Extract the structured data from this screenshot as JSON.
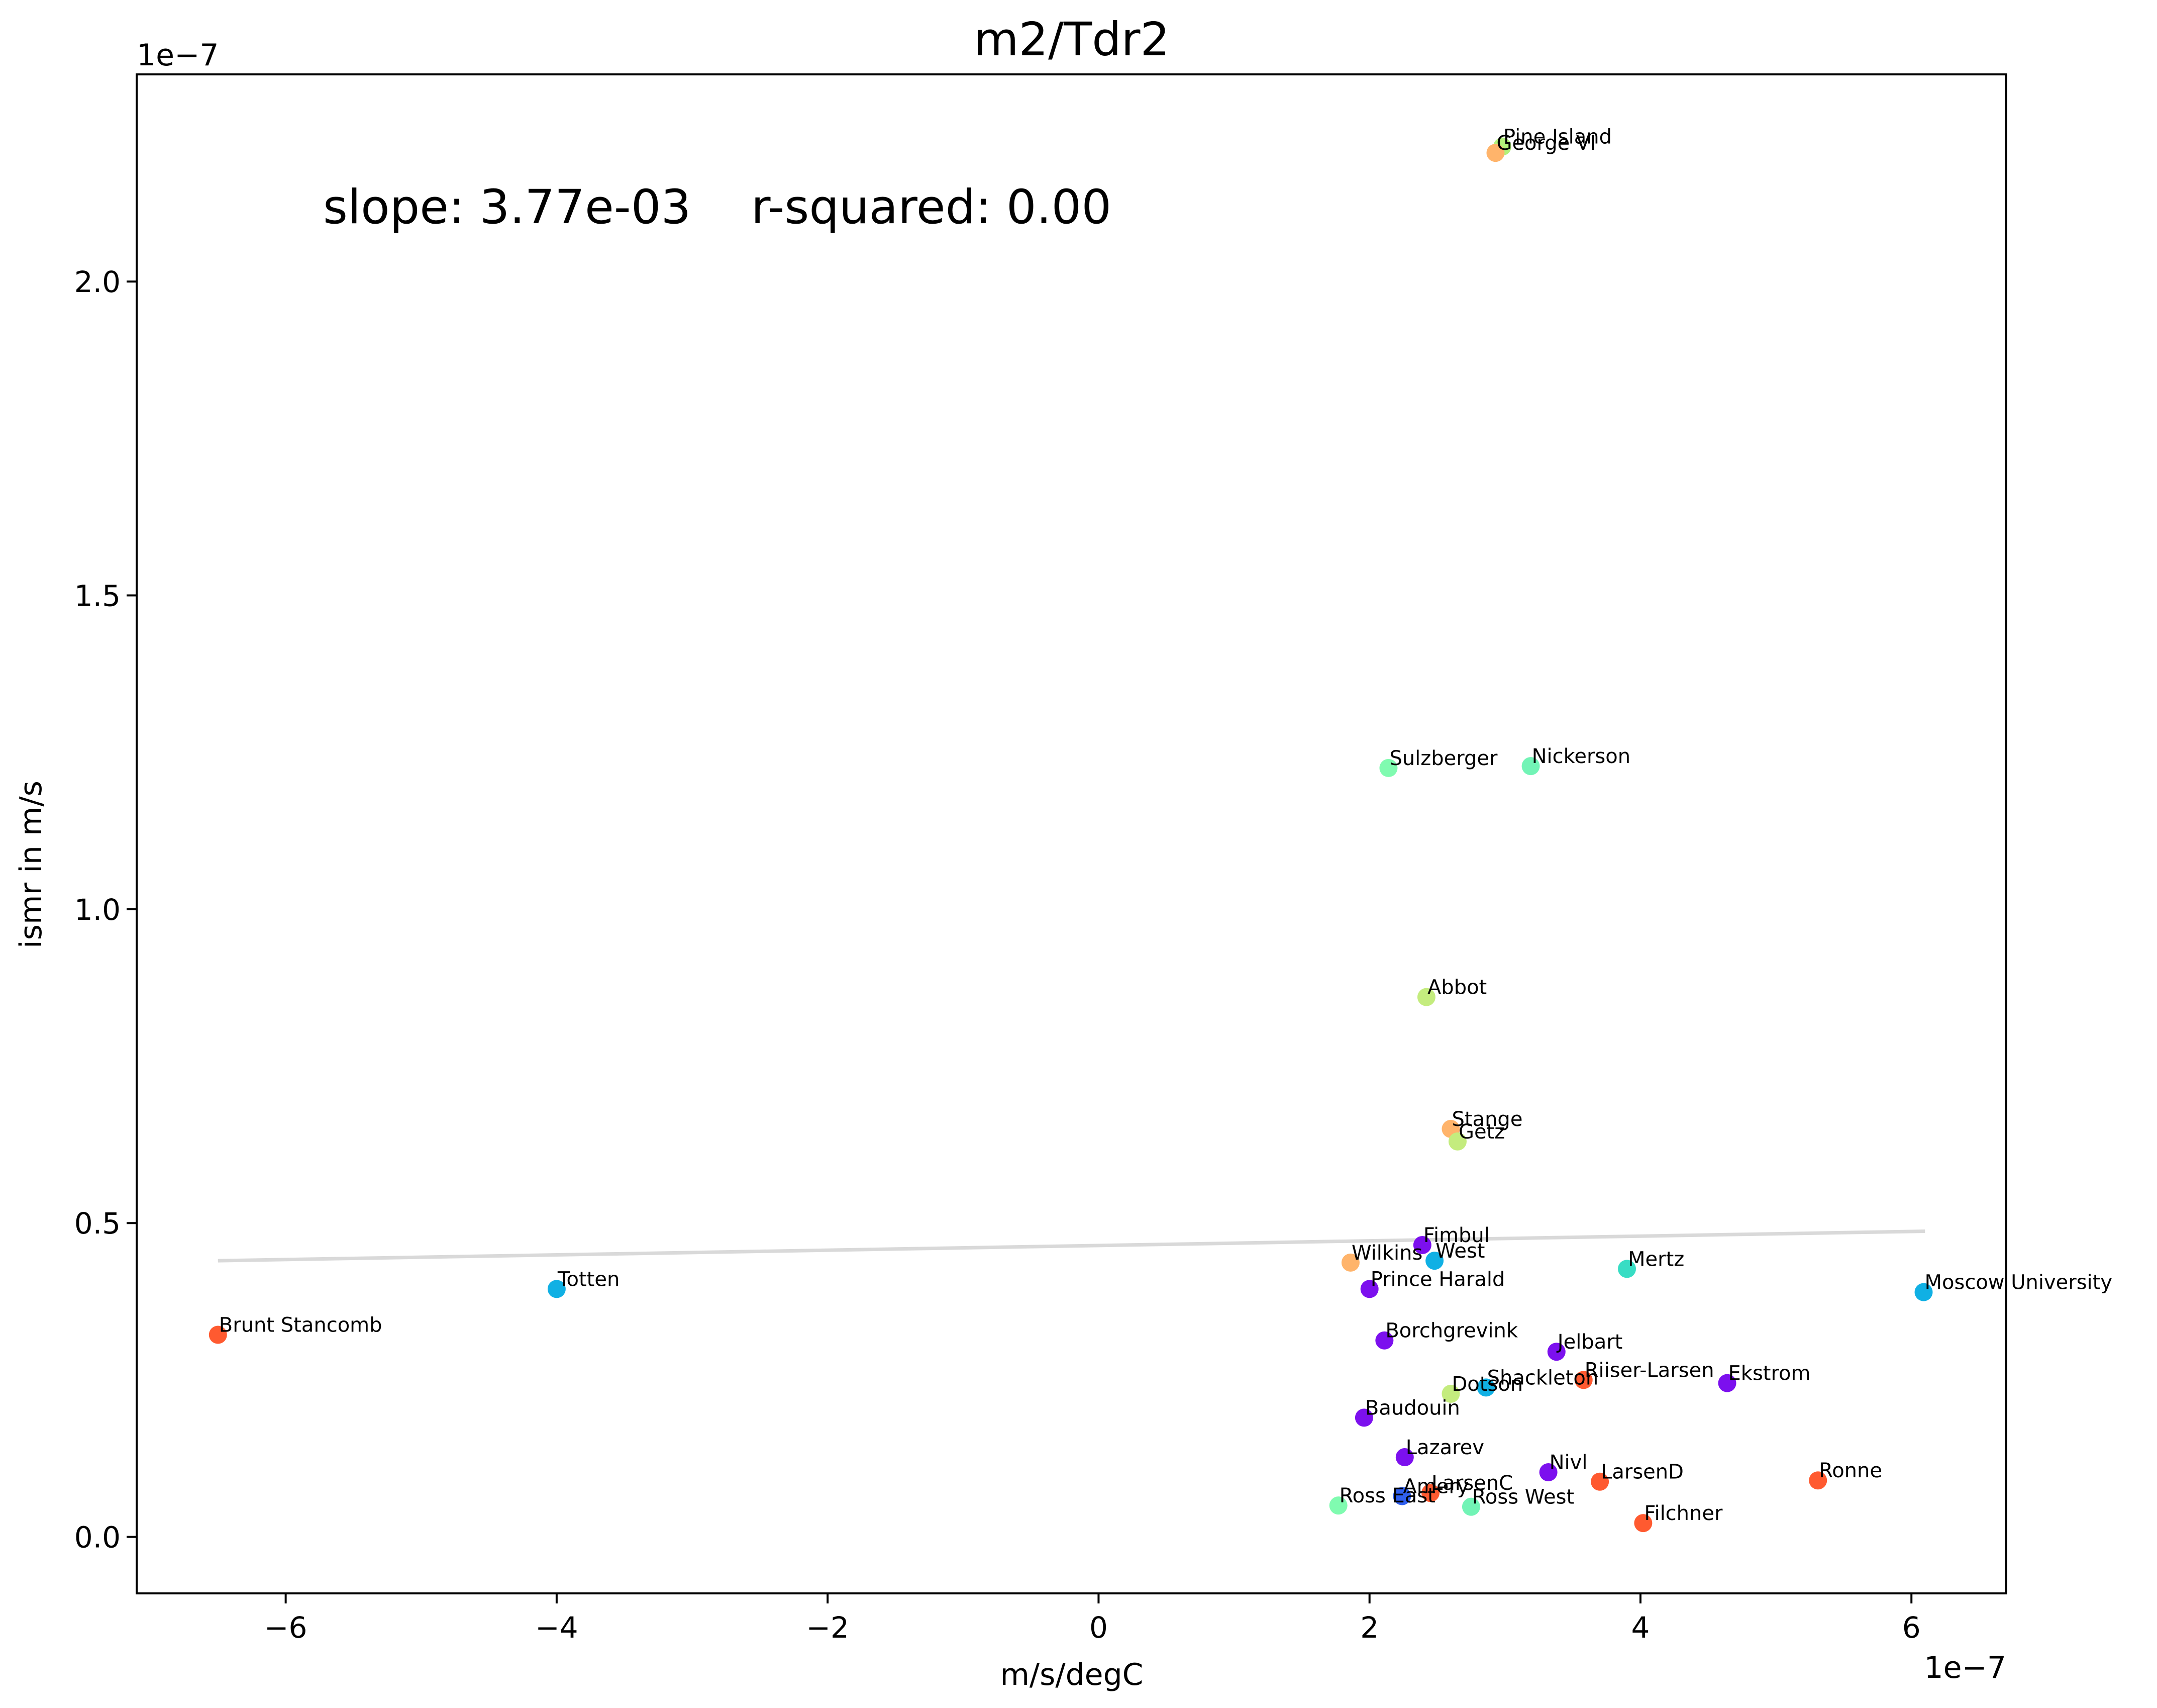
{
  "chart_data": {
    "type": "scatter",
    "title": "m2/Tdr2",
    "xlabel": "m/s/degC",
    "ylabel": "ismr in m/s",
    "x_offset_label": "1e−7",
    "y_offset_label": "1e−7",
    "annotation": "slope: 3.77e-03    r-squared: 0.00",
    "xlim": [
      -7.1e-07,
      6.7e-07
    ],
    "ylim": [
      -9e-09,
      2.33e-07
    ],
    "x_ticks": [
      -6e-07,
      -4e-07,
      -2e-07,
      0,
      2e-07,
      4e-07,
      6e-07
    ],
    "x_tick_labels": [
      "−6",
      "−4",
      "−2",
      "0",
      "2",
      "4",
      "6"
    ],
    "y_ticks": [
      0,
      5e-08,
      1e-07,
      1.5e-07,
      2e-07
    ],
    "y_tick_labels": [
      "0.0",
      "0.5",
      "1.0",
      "1.5",
      "2.0"
    ],
    "grid": false,
    "fit_line": {
      "x": [
        -6.5e-07,
        6.1e-07
      ],
      "y": [
        4.4e-08,
        4.87e-08
      ],
      "color": "#d9d9d9"
    },
    "points": [
      {
        "label": "Pine Island",
        "x": 2.98e-07,
        "y": 2.215e-07,
        "color": "#b2f27a"
      },
      {
        "label": "George VI",
        "x": 2.93e-07,
        "y": 2.205e-07,
        "color": "#ffb46b"
      },
      {
        "label": "Sulzberger",
        "x": 2.14e-07,
        "y": 1.225e-07,
        "color": "#80fbb0"
      },
      {
        "label": "Nickerson",
        "x": 3.19e-07,
        "y": 1.228e-07,
        "color": "#72f4b6"
      },
      {
        "label": "Abbot",
        "x": 2.42e-07,
        "y": 8.6e-08,
        "color": "#c4ec7e"
      },
      {
        "label": "Stange",
        "x": 2.6e-07,
        "y": 6.5e-08,
        "color": "#ffb46b"
      },
      {
        "label": "Getz",
        "x": 2.65e-07,
        "y": 6.3e-08,
        "color": "#c4ec7e"
      },
      {
        "label": "Fimbul",
        "x": 2.39e-07,
        "y": 4.65e-08,
        "color": "#7c10ee"
      },
      {
        "label": "West",
        "x": 2.48e-07,
        "y": 4.4e-08,
        "color": "#10b0e4"
      },
      {
        "label": "Wilkins",
        "x": 1.86e-07,
        "y": 4.37e-08,
        "color": "#ffb46b"
      },
      {
        "label": "Mertz",
        "x": 3.9e-07,
        "y": 4.27e-08,
        "color": "#38ddc4"
      },
      {
        "label": "Totten",
        "x": -4e-07,
        "y": 3.95e-08,
        "color": "#10b0e4"
      },
      {
        "label": "Prince Harald",
        "x": 2e-07,
        "y": 3.95e-08,
        "color": "#7c10ee"
      },
      {
        "label": "Moscow University",
        "x": 6.09e-07,
        "y": 3.9e-08,
        "color": "#10b0e4"
      },
      {
        "label": "Brunt Stancomb",
        "x": -6.5e-07,
        "y": 3.22e-08,
        "color": "#ff5a30"
      },
      {
        "label": "Borchgrevink",
        "x": 2.11e-07,
        "y": 3.13e-08,
        "color": "#7c10ee"
      },
      {
        "label": "Jelbart",
        "x": 3.38e-07,
        "y": 2.95e-08,
        "color": "#7c10ee"
      },
      {
        "label": "Riiser-Larsen",
        "x": 3.58e-07,
        "y": 2.5e-08,
        "color": "#ff5a30"
      },
      {
        "label": "Ekstrom",
        "x": 4.64e-07,
        "y": 2.45e-08,
        "color": "#7c10ee"
      },
      {
        "label": "Shackleton",
        "x": 2.86e-07,
        "y": 2.38e-08,
        "color": "#10b0e4"
      },
      {
        "label": "Dotson",
        "x": 2.6e-07,
        "y": 2.28e-08,
        "color": "#c4ec7e"
      },
      {
        "label": "Baudouin",
        "x": 1.96e-07,
        "y": 1.9e-08,
        "color": "#7c10ee"
      },
      {
        "label": "Lazarev",
        "x": 2.26e-07,
        "y": 1.27e-08,
        "color": "#7c10ee"
      },
      {
        "label": "Nivl",
        "x": 3.32e-07,
        "y": 1.03e-08,
        "color": "#7c10ee"
      },
      {
        "label": "LarsenD",
        "x": 3.7e-07,
        "y": 8.8e-09,
        "color": "#ff5a30"
      },
      {
        "label": "Ronne",
        "x": 5.31e-07,
        "y": 9e-09,
        "color": "#ff5a30"
      },
      {
        "label": "LarsenC",
        "x": 2.45e-07,
        "y": 7e-09,
        "color": "#ff5a30"
      },
      {
        "label": "Amery",
        "x": 2.24e-07,
        "y": 6.5e-09,
        "color": "#3060f0"
      },
      {
        "label": "Ross East",
        "x": 1.77e-07,
        "y": 5e-09,
        "color": "#80fbb0"
      },
      {
        "label": "Ross West",
        "x": 2.75e-07,
        "y": 4.8e-09,
        "color": "#72f4b6"
      },
      {
        "label": "Filchner",
        "x": 4.02e-07,
        "y": 2.2e-09,
        "color": "#ff5a30"
      }
    ]
  }
}
